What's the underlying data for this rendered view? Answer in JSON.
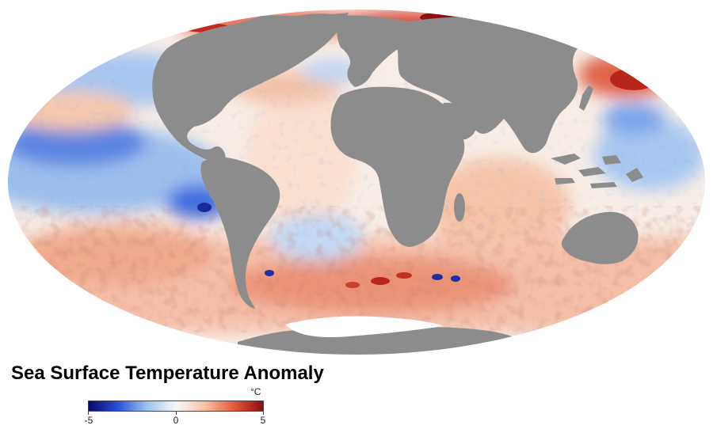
{
  "map": {
    "projection": "mollweide",
    "land_color": "#8c8c8c",
    "ocean_neutral_color": "#f7f4f0"
  },
  "title": "Sea Surface Temperature Anomaly",
  "legend": {
    "unit": "°C",
    "min_label": "-5",
    "mid_label": "0",
    "max_label": "5",
    "colors": [
      "#08086b",
      "#2a4fd6",
      "#9cc3ef",
      "#f8f8f8",
      "#f6c3a6",
      "#e45a3a",
      "#8a0d10"
    ]
  }
}
